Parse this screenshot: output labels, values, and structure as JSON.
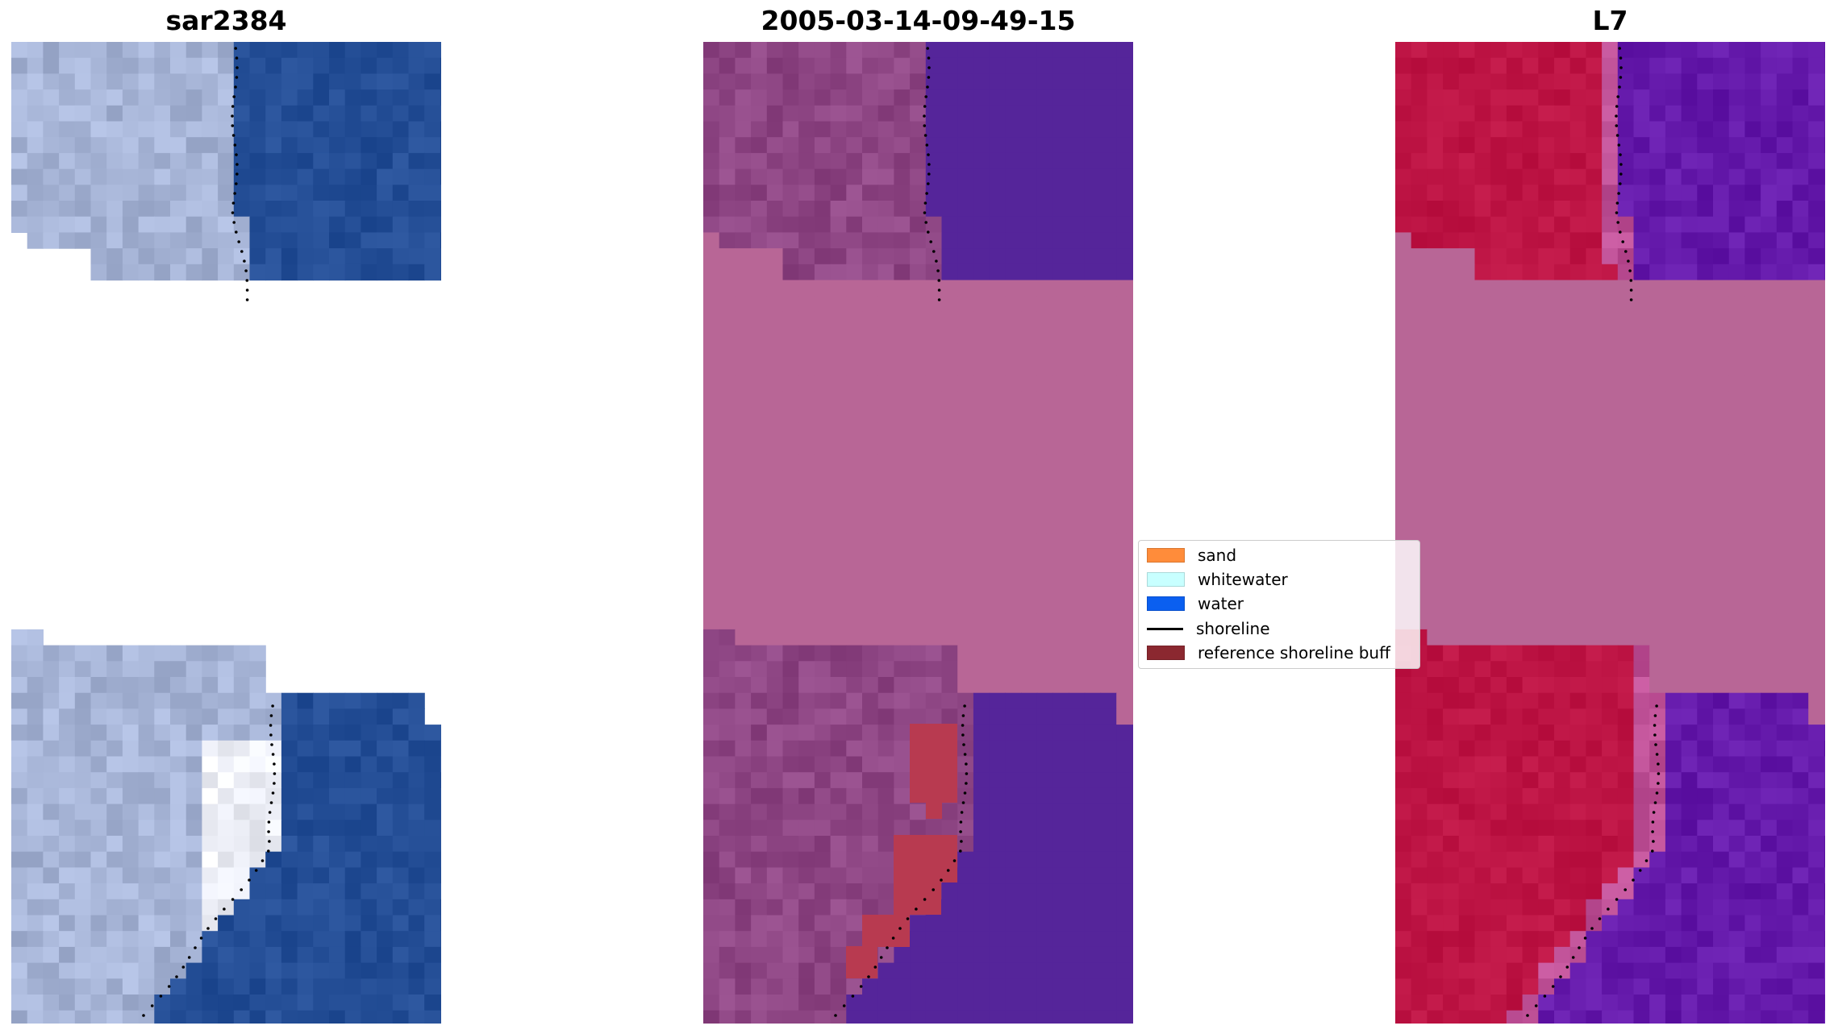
{
  "panels": [
    {
      "title": "sar2384",
      "kind": "rgb"
    },
    {
      "title": "2005-03-14-09-49-15",
      "kind": "classified"
    },
    {
      "title": "L7",
      "kind": "index"
    }
  ],
  "legend": {
    "items": [
      {
        "label": "sand",
        "type": "patch",
        "color": "#ff8c3a"
      },
      {
        "label": "whitewater",
        "type": "patch",
        "color": "#c8ffff"
      },
      {
        "label": "water",
        "type": "patch",
        "color": "#0a5ff0"
      },
      {
        "label": "shoreline",
        "type": "line",
        "color": "#000000"
      },
      {
        "label": "reference shoreline buff",
        "type": "patch",
        "color": "#8b2830"
      }
    ]
  },
  "colors": {
    "rgb_land": "#a6b4d6",
    "rgb_water": "#244e96",
    "rgb_bright": "#eef0f8",
    "cls_land": "#8e4684",
    "cls_water": "#55259a",
    "cls_nodata": "#b86696",
    "cls_buffer": "#b83a50",
    "idx_land": "#bd1444",
    "idx_water": "#6419aa",
    "idx_nodata": "#b86696"
  }
}
